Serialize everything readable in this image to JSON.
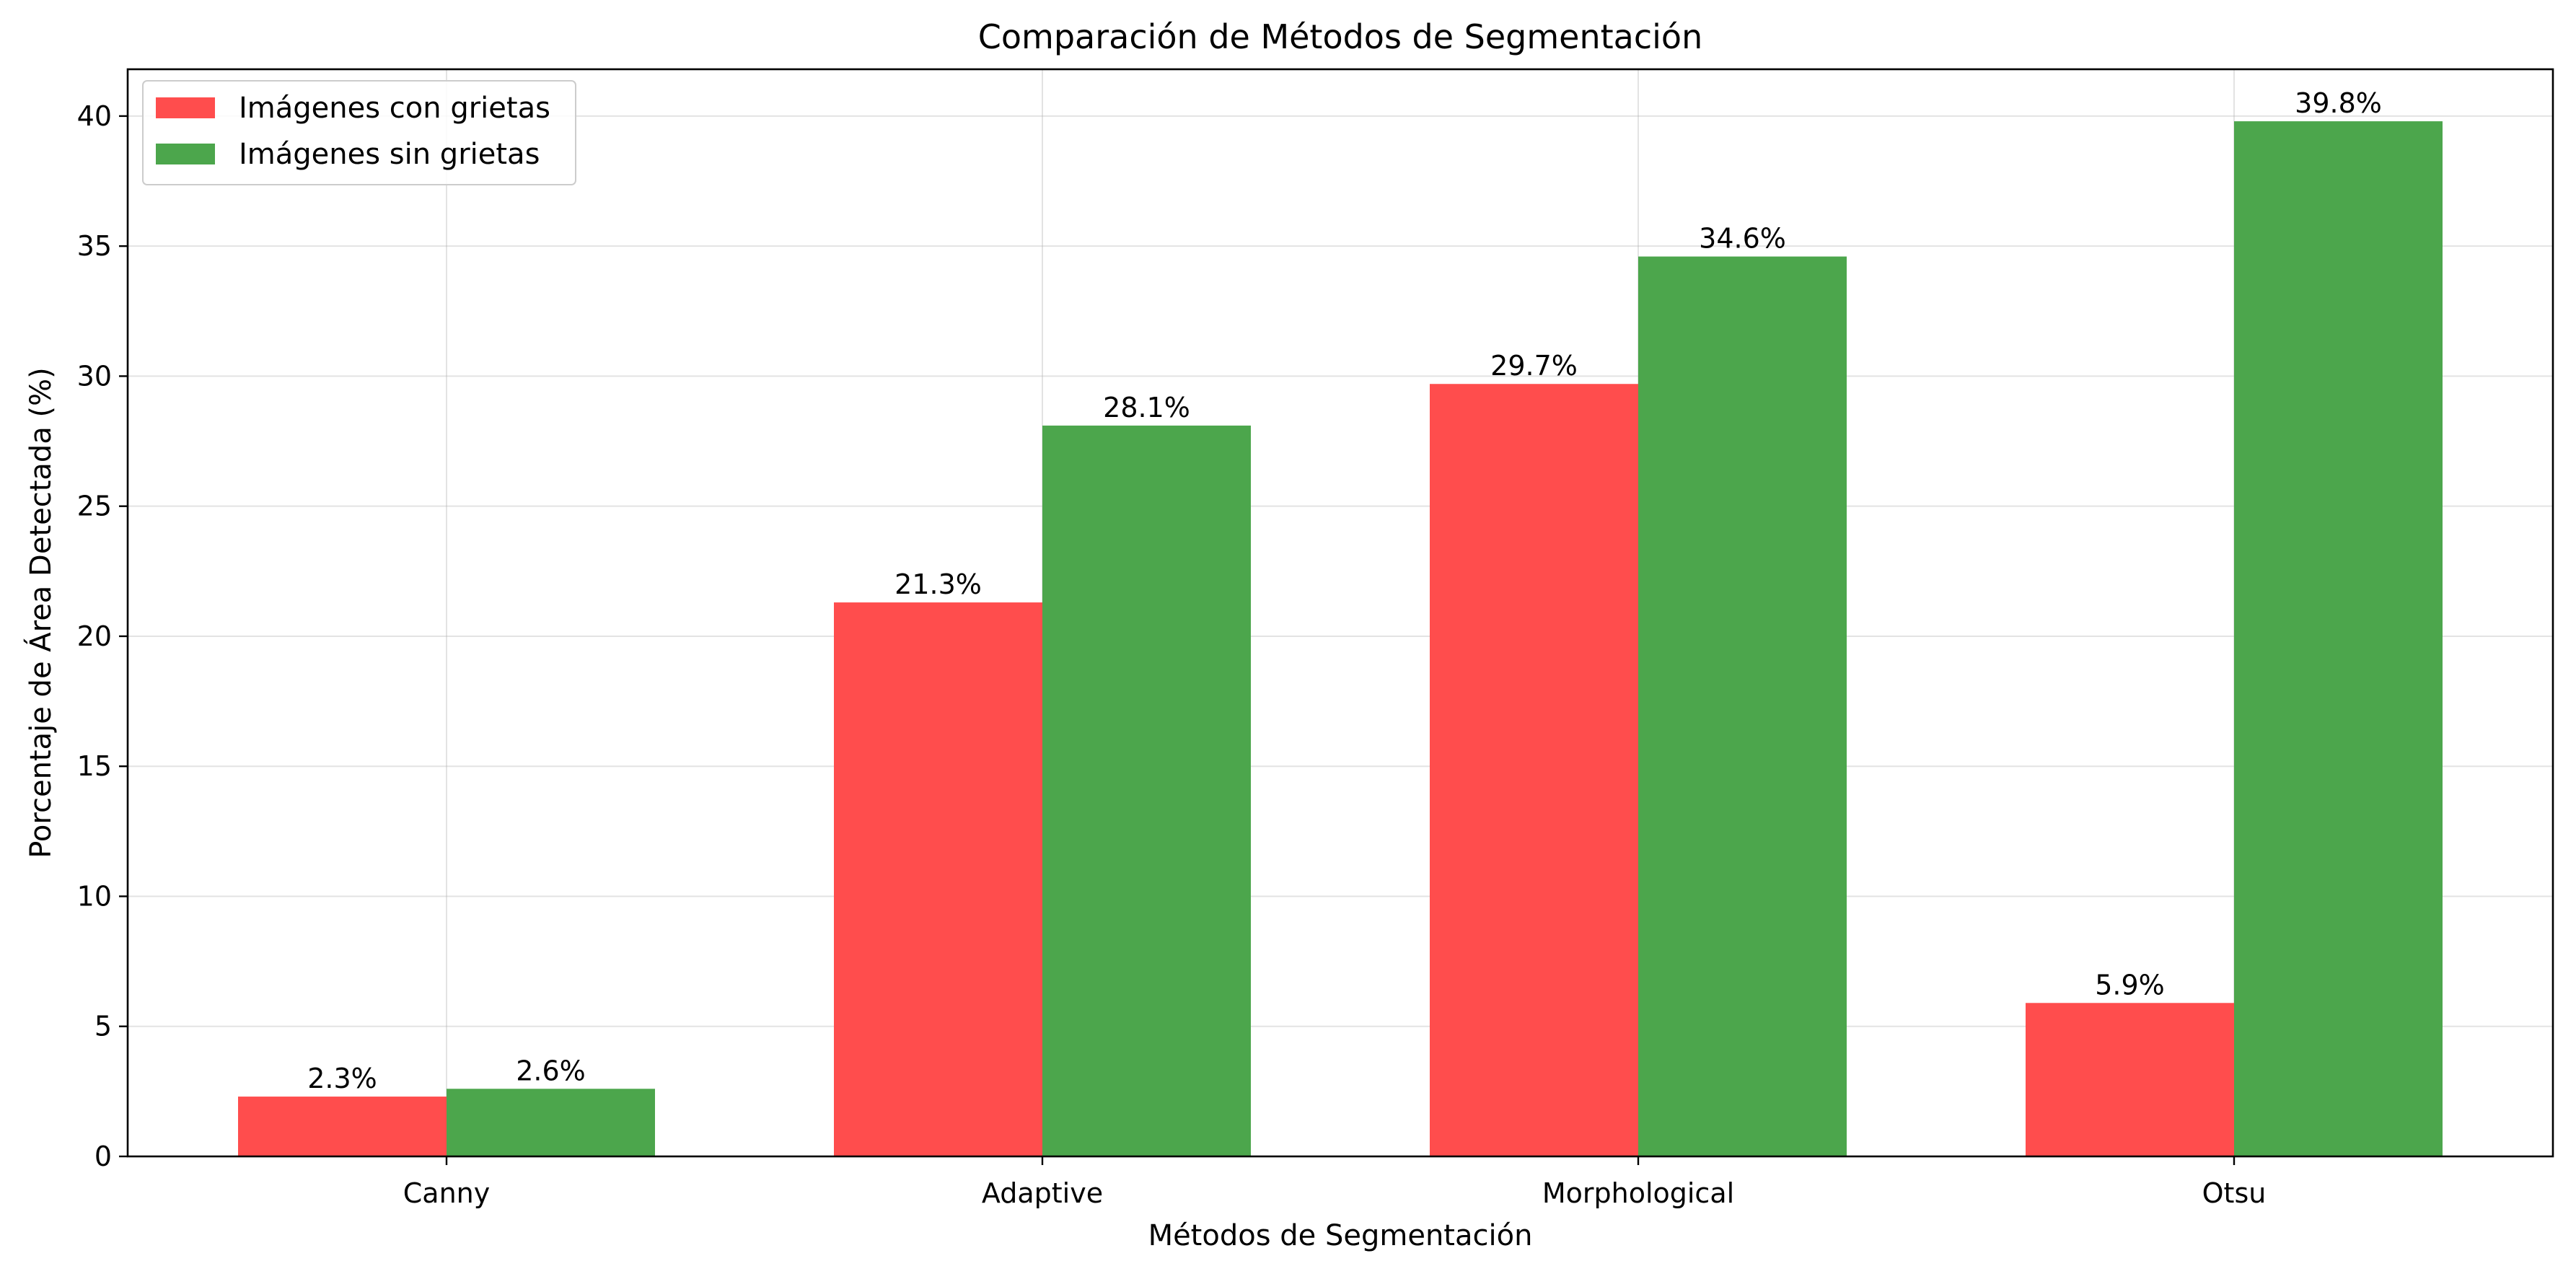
{
  "chart_data": {
    "type": "bar",
    "title": "Comparación de Métodos de Segmentación",
    "xlabel": "Métodos de Segmentación",
    "ylabel": "Porcentaje de Área Detectada (%)",
    "categories": [
      "Canny",
      "Adaptive",
      "Morphological",
      "Otsu"
    ],
    "series": [
      {
        "name": "Imágenes con grietas",
        "values": [
          2.3,
          21.3,
          29.7,
          5.9
        ],
        "labels": [
          "2.3%",
          "21.3%",
          "29.7%",
          "5.9%"
        ],
        "color": "#ff4d4d"
      },
      {
        "name": "Imágenes sin grietas",
        "values": [
          2.6,
          28.1,
          34.6,
          39.8
        ],
        "labels": [
          "2.6%",
          "28.1%",
          "34.6%",
          "39.8%"
        ],
        "color": "#4ca64c"
      }
    ],
    "ylim": [
      0,
      41.8
    ],
    "yticks": [
      0,
      5,
      10,
      15,
      20,
      25,
      30,
      35,
      40
    ],
    "ytick_labels": [
      "0",
      "5",
      "10",
      "15",
      "20",
      "25",
      "30",
      "35",
      "40"
    ],
    "grid": true,
    "legend_position": "top-left"
  }
}
